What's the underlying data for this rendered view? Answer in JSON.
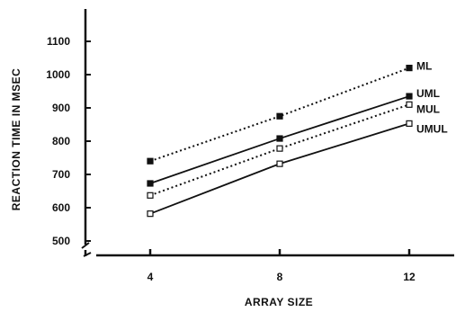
{
  "chart_data": {
    "type": "line",
    "xlabel": "ARRAY  SIZE",
    "ylabel": "REACTION TIME IN MSEC",
    "x": [
      4,
      8,
      12
    ],
    "xticks": [
      "4",
      "8",
      "12"
    ],
    "yticks": [
      500,
      600,
      700,
      800,
      900,
      1000,
      1100
    ],
    "ylim": [
      500,
      1100
    ],
    "xlim": [
      2,
      14
    ],
    "y_axis_break": true,
    "grid": false,
    "legend": "labels at line ends (right)",
    "series": [
      {
        "name": "ML",
        "values": [
          740,
          875,
          1020
        ],
        "line": "dotted",
        "marker": "filled-square"
      },
      {
        "name": "UML",
        "values": [
          673,
          808,
          935
        ],
        "line": "solid",
        "marker": "filled-square"
      },
      {
        "name": "MUL",
        "values": [
          637,
          778,
          910
        ],
        "line": "dotted",
        "marker": "open-square"
      },
      {
        "name": "UMUL",
        "values": [
          582,
          732,
          853
        ],
        "line": "solid",
        "marker": "open-square"
      }
    ]
  }
}
